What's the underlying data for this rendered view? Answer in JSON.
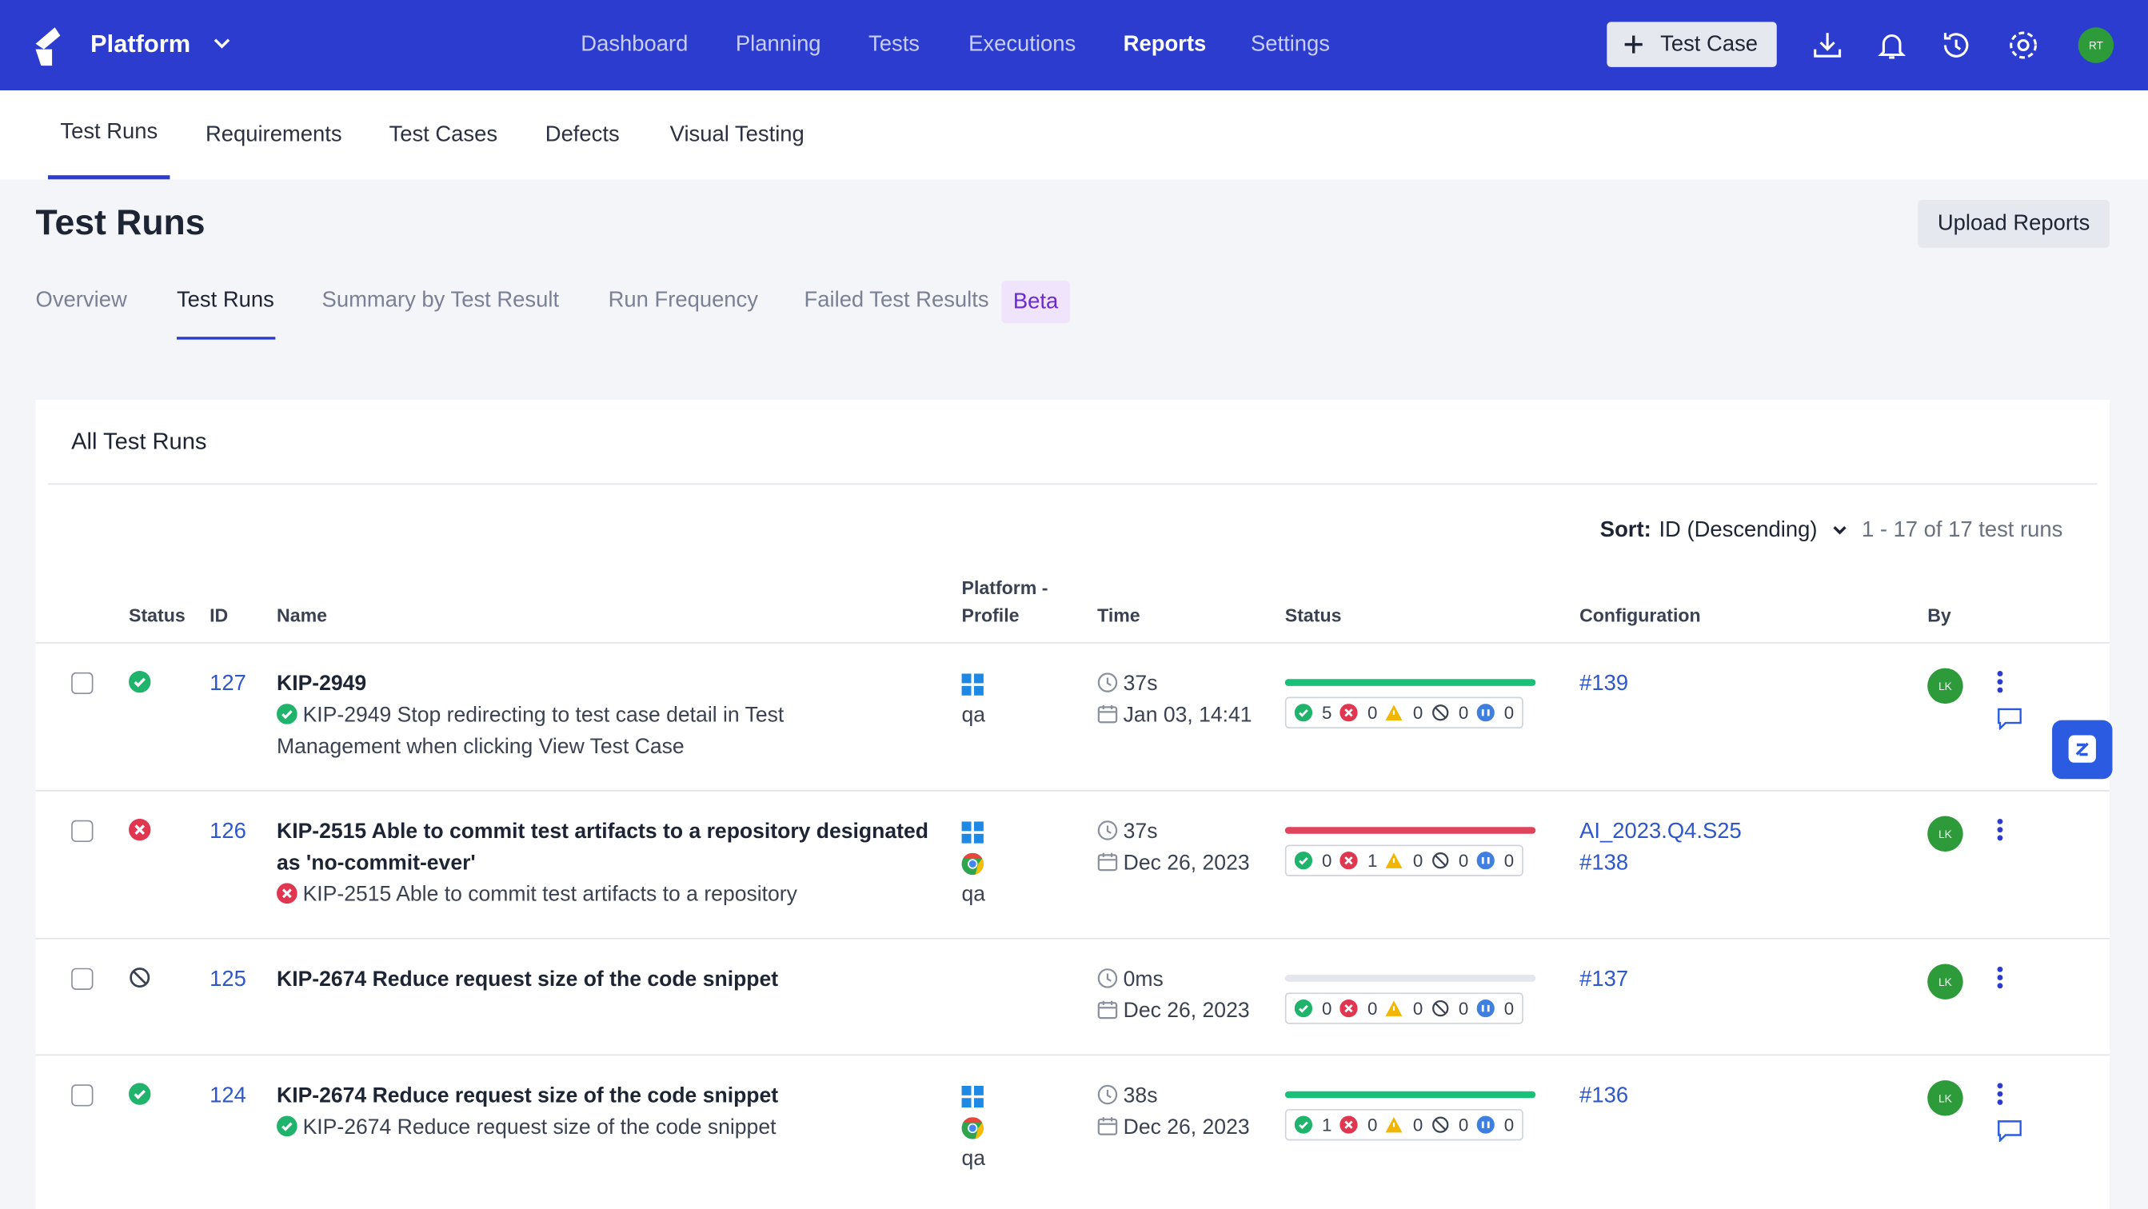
{
  "header": {
    "brand": "Platform",
    "nav": [
      "Dashboard",
      "Planning",
      "Tests",
      "Executions",
      "Reports",
      "Settings"
    ],
    "button": "Test Case",
    "avatar": "RT"
  },
  "subnav": [
    "Test Runs",
    "Requirements",
    "Test Cases",
    "Defects",
    "Visual Testing"
  ],
  "page": {
    "title": "Test Runs",
    "upload": "Upload Reports",
    "tabs": [
      "Overview",
      "Test Runs",
      "Summary by Test Result",
      "Run Frequency",
      "Failed Test Results"
    ],
    "beta": "Beta"
  },
  "panel": {
    "title": "All Test Runs",
    "sort_label": "Sort:",
    "sort_value": "ID (Descending)",
    "count": "1 - 17 of 17 test runs"
  },
  "table": {
    "columns": [
      "Status",
      "ID",
      "Name",
      "Platform - Profile",
      "Time",
      "Status",
      "Configuration",
      "By"
    ],
    "rows": [
      {
        "status": "passed",
        "id": "127",
        "name": "KIP-2949",
        "sub_status": "passed",
        "sub": "KIP-2949 Stop redirecting to test case detail in Test Management when clicking View Test Case",
        "platforms": [
          "windows"
        ],
        "profile": "qa",
        "duration": "37s",
        "date": "Jan 03, 14:41",
        "counts": [
          5,
          0,
          0,
          0,
          0
        ],
        "configuration": [
          "#139"
        ],
        "by": "LK",
        "comments": true
      },
      {
        "status": "failed",
        "id": "126",
        "name": "KIP-2515 Able to commit test artifacts to a repository designated as 'no-commit-ever'",
        "sub_status": "failed",
        "sub": "KIP-2515 Able to commit test artifacts to a repository",
        "platforms": [
          "windows",
          "chrome"
        ],
        "profile": "qa",
        "duration": "37s",
        "date": "Dec 26, 2023",
        "counts": [
          0,
          1,
          0,
          0,
          0
        ],
        "configuration": [
          "AI_2023.Q4.S25",
          "#138"
        ],
        "by": "LK",
        "comments": false
      },
      {
        "status": "skipped",
        "id": "125",
        "name": "KIP-2674 Reduce request size of the code snippet",
        "platforms": [],
        "duration": "0ms",
        "date": "Dec 26, 2023",
        "counts": [
          0,
          0,
          0,
          0,
          0
        ],
        "configuration": [
          "#137"
        ],
        "by": "LK",
        "comments": false
      },
      {
        "status": "passed",
        "id": "124",
        "name": "KIP-2674 Reduce request size of the code snippet",
        "sub_status": "passed",
        "sub": "KIP-2674 Reduce request size of the code snippet",
        "platforms": [
          "windows",
          "chrome"
        ],
        "profile": "qa",
        "duration": "38s",
        "date": "Dec 26, 2023",
        "counts": [
          1,
          0,
          0,
          0,
          0
        ],
        "configuration": [
          "#136"
        ],
        "by": "LK",
        "comments": true
      }
    ]
  }
}
